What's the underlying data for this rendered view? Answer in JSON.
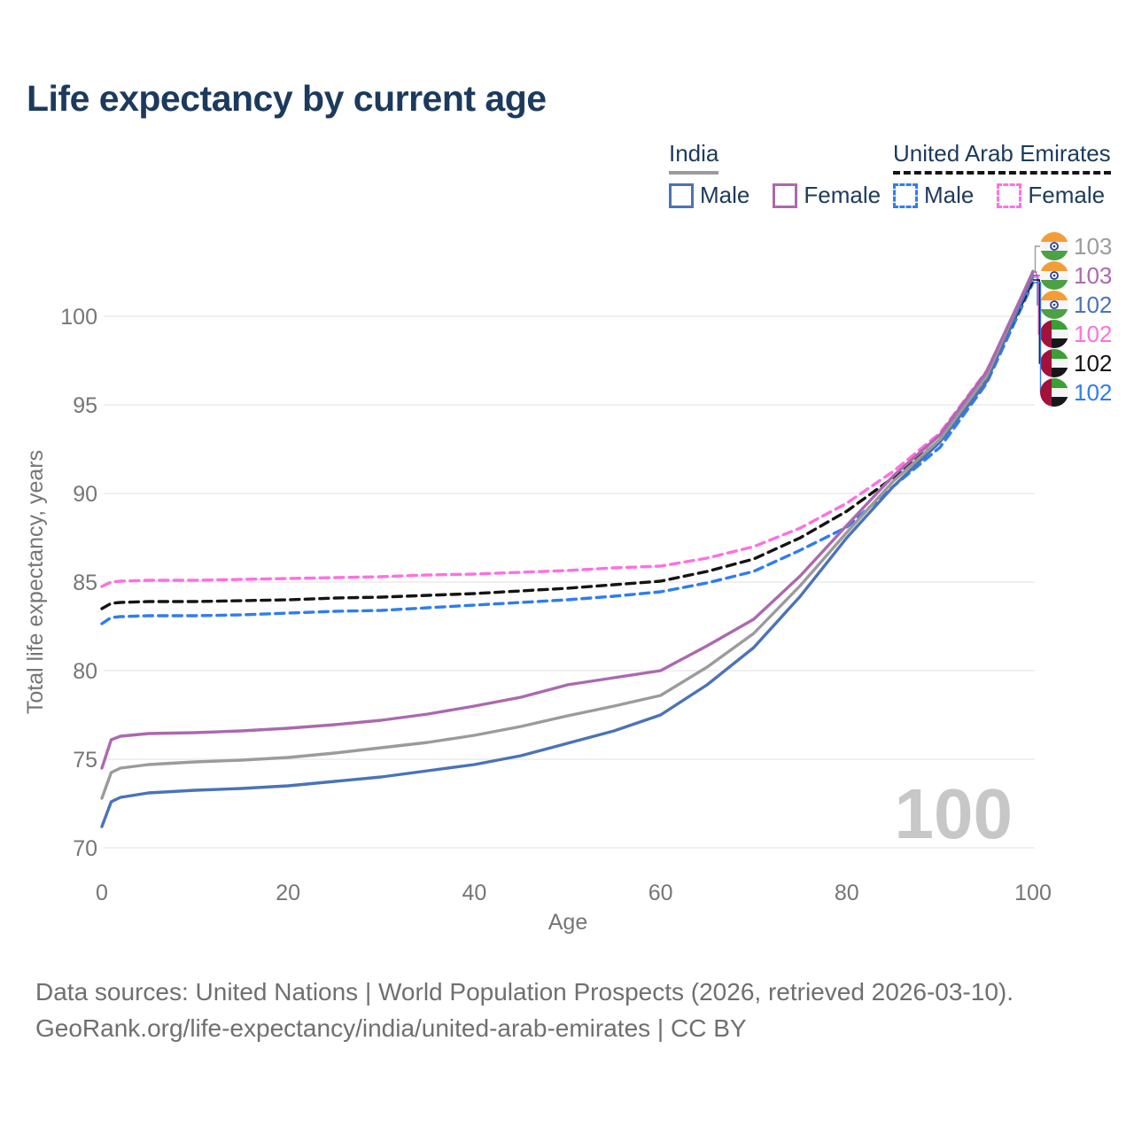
{
  "page": {
    "title": "Life expectancy by current age"
  },
  "legend": {
    "groups": [
      {
        "title": "India",
        "underline_style": "solid",
        "underline_color": "#9B9B9B",
        "items": [
          {
            "label": "Male",
            "color": "#4A73B8",
            "dashed": false
          },
          {
            "label": "Female",
            "color": "#AC68AF",
            "dashed": false
          }
        ]
      },
      {
        "title": "United Arab Emirates",
        "underline_style": "dashed",
        "underline_color": "#141414",
        "items": [
          {
            "label": "Male",
            "color": "#2E7DF1",
            "dashed": true
          },
          {
            "label": "Female",
            "color": "#FF6FE1",
            "dashed": true
          }
        ]
      }
    ]
  },
  "chart_data": {
    "type": "line",
    "title": "Life expectancy by current age",
    "xlabel": "Age",
    "ylabel": "Total life expectancy, years",
    "xticks": [
      0,
      20,
      40,
      60,
      80,
      100
    ],
    "yticks": [
      70,
      75,
      80,
      85,
      90,
      95,
      100
    ],
    "xlim": [
      0,
      100
    ],
    "ylim": [
      70,
      100
    ],
    "grid": "horizontal",
    "legend_position": "top-right",
    "watermark_age": "100",
    "ages": [
      0,
      1,
      2,
      5,
      10,
      15,
      20,
      25,
      30,
      35,
      40,
      45,
      50,
      55,
      60,
      65,
      70,
      75,
      80,
      85,
      90,
      95,
      100
    ],
    "series": [
      {
        "id": "uae-male",
        "name": "United Arab Emirates Male",
        "color": "#2E7DF1",
        "dashed": true,
        "values": [
          82.65,
          83.0,
          83.05,
          83.1,
          83.1,
          83.15,
          83.25,
          83.35,
          83.4,
          83.55,
          83.7,
          83.85,
          84.0,
          84.2,
          84.45,
          84.95,
          85.6,
          86.8,
          88.1,
          90.4,
          92.6,
          96.2,
          101.9
        ]
      },
      {
        "id": "uae-total",
        "name": "United Arab Emirates",
        "color": "#141414",
        "dashed": true,
        "values": [
          83.5,
          83.8,
          83.85,
          83.9,
          83.9,
          83.95,
          84.0,
          84.1,
          84.15,
          84.25,
          84.35,
          84.5,
          84.65,
          84.85,
          85.05,
          85.6,
          86.3,
          87.5,
          89.0,
          90.9,
          93.0,
          96.5,
          102.05
        ]
      },
      {
        "id": "uae-female",
        "name": "United Arab Emirates Female",
        "color": "#FF6FE1",
        "dashed": true,
        "values": [
          84.75,
          85.0,
          85.05,
          85.1,
          85.1,
          85.15,
          85.2,
          85.25,
          85.3,
          85.4,
          85.45,
          85.55,
          85.65,
          85.8,
          85.9,
          86.35,
          87.0,
          88.05,
          89.45,
          91.25,
          93.4,
          96.9,
          102.2
        ]
      },
      {
        "id": "india-male",
        "name": "India Male",
        "color": "#4A73B8",
        "dashed": false,
        "values": [
          71.2,
          72.6,
          72.85,
          73.1,
          73.25,
          73.35,
          73.5,
          73.75,
          74.0,
          74.35,
          74.7,
          75.2,
          75.9,
          76.6,
          77.5,
          79.2,
          81.3,
          84.2,
          87.5,
          90.4,
          92.9,
          96.3,
          102.3
        ]
      },
      {
        "id": "india-total",
        "name": "India",
        "color": "#9B9B9B",
        "dashed": false,
        "values": [
          72.8,
          74.25,
          74.5,
          74.7,
          74.85,
          74.95,
          75.1,
          75.35,
          75.65,
          75.95,
          76.35,
          76.85,
          77.45,
          78.0,
          78.6,
          80.2,
          82.1,
          84.8,
          87.8,
          90.7,
          93.05,
          96.6,
          102.55
        ]
      },
      {
        "id": "india-female",
        "name": "India Female",
        "color": "#AC68AF",
        "dashed": false,
        "values": [
          74.5,
          76.1,
          76.3,
          76.45,
          76.5,
          76.6,
          76.75,
          76.95,
          77.2,
          77.55,
          78.0,
          78.5,
          79.2,
          79.6,
          80.0,
          81.4,
          82.9,
          85.35,
          88.2,
          91.0,
          93.3,
          96.85,
          102.5
        ]
      }
    ],
    "end_labels": [
      {
        "series": "india-total",
        "country": "india",
        "value": "103",
        "color": "#9B9B9B"
      },
      {
        "series": "india-female",
        "country": "india",
        "value": "103",
        "color": "#AC68AF"
      },
      {
        "series": "india-male",
        "country": "india",
        "value": "102",
        "color": "#4A73B8"
      },
      {
        "series": "uae-female",
        "country": "uae",
        "value": "102",
        "color": "#FF6FE1"
      },
      {
        "series": "uae-total",
        "country": "uae",
        "value": "102",
        "color": "#141414"
      },
      {
        "series": "uae-male",
        "country": "uae",
        "value": "102",
        "color": "#2E7DF1"
      }
    ]
  },
  "footer": {
    "line1": "Data sources: United Nations | World Population Prospects (2026, retrieved 2026-03-10).",
    "line2": "GeoRank.org/life-expectancy/india/united-arab-emirates | CC BY"
  }
}
